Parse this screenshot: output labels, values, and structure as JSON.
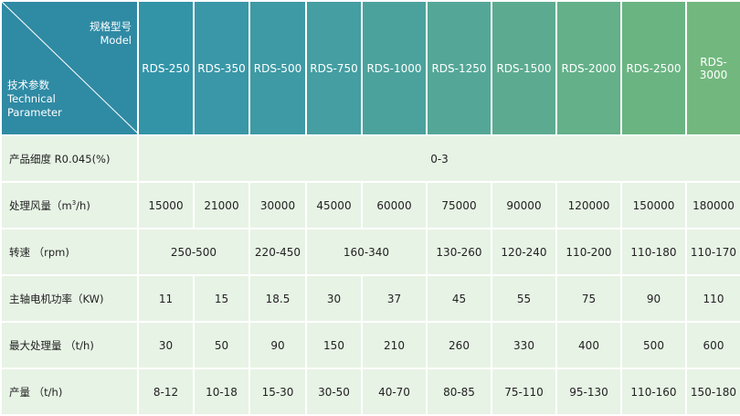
{
  "header": {
    "model_cn": "规格型号",
    "model_en": "Model",
    "param_cn": "技术参数",
    "param_en1": "Technical",
    "param_en2": "Parameter",
    "models": [
      "RDS-250",
      "RDS-350",
      "RDS-500",
      "RDS-750",
      "RDS-1000",
      "RDS-1250",
      "RDS-1500",
      "RDS-2000",
      "RDS-2500",
      "RDS-3000"
    ],
    "colors": [
      "#3394a8",
      "#3997a7",
      "#3e9aa4",
      "#449ea2",
      "#4ba29c",
      "#54a797",
      "#5cab90",
      "#63b089",
      "#6ab482",
      "#72b87e"
    ]
  },
  "rows": {
    "fineness": {
      "label": "产品细度 R0.045(%)",
      "value": "0-3"
    },
    "air": {
      "label_pre": "处理风量（m",
      "label_sup": "3",
      "label_post": "/h)",
      "values": [
        "15000",
        "21000",
        "30000",
        "45000",
        "60000",
        "75000",
        "90000",
        "120000",
        "150000",
        "180000"
      ]
    },
    "speed": {
      "label": "转速 （rpm)",
      "v1": "250-500",
      "v2": "220-450",
      "v3": "160-340",
      "v4": "130-260",
      "v5": "120-240",
      "v6": "110-200",
      "v7": "110-180",
      "v8": "110-170"
    },
    "power": {
      "label": "主轴电机功率（KW)",
      "values": [
        "11",
        "15",
        "18.5",
        "30",
        "37",
        "45",
        "55",
        "75",
        "90",
        "110"
      ]
    },
    "maxcap": {
      "label": "最大处理量 （t/h)",
      "values": [
        "30",
        "50",
        "90",
        "150",
        "210",
        "260",
        "330",
        "400",
        "500",
        "600"
      ]
    },
    "output": {
      "label": "产量 （t/h)",
      "values": [
        "8-12",
        "10-18",
        "15-30",
        "30-50",
        "40-70",
        "80-85",
        "75-110",
        "95-130",
        "110-160",
        "150-180"
      ]
    }
  }
}
